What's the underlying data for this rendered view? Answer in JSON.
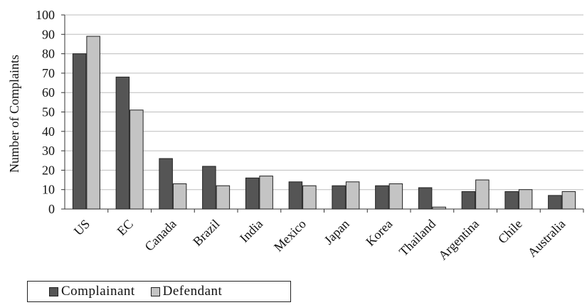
{
  "chart_data": {
    "type": "bar",
    "title": "",
    "xlabel": "",
    "ylabel": "Number of Complaints",
    "ylim": [
      0,
      100
    ],
    "yticks": [
      0,
      10,
      20,
      30,
      40,
      50,
      60,
      70,
      80,
      90,
      100
    ],
    "grid": true,
    "legend_position": "bottom-left",
    "categories": [
      "US",
      "EC",
      "Canada",
      "Brazil",
      "India",
      "Mexico",
      "Japan",
      "Korea",
      "Thailand",
      "Argentina",
      "Chile",
      "Australia"
    ],
    "series": [
      {
        "name": "Complainant",
        "color": "#555555",
        "values": [
          80,
          68,
          26,
          22,
          16,
          14,
          12,
          12,
          11,
          9,
          9,
          7
        ]
      },
      {
        "name": "Defendant",
        "color": "#c4c4c4",
        "values": [
          89,
          51,
          13,
          12,
          17,
          12,
          14,
          13,
          1,
          15,
          10,
          9
        ]
      }
    ]
  }
}
